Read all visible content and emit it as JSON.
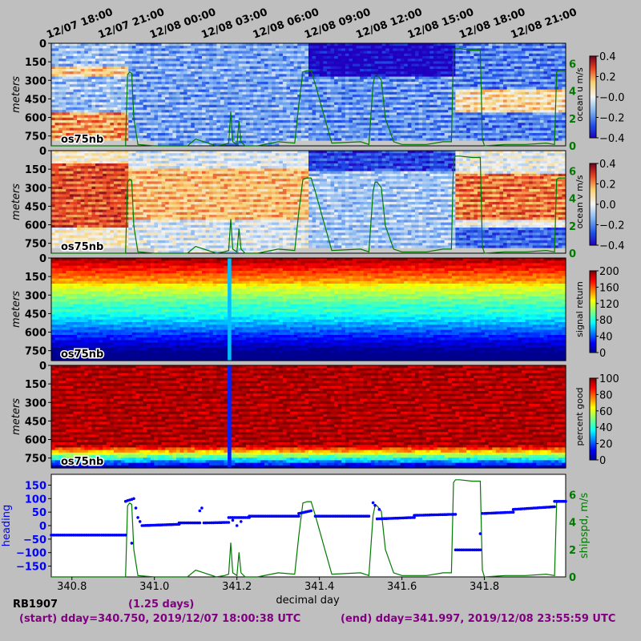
{
  "chart_data": {
    "top_axis_labels": [
      "12/07 18:00",
      "12/07 21:00",
      "12/08 00:00",
      "12/08 03:00",
      "12/08 06:00",
      "12/08 09:00",
      "12/08 12:00",
      "12/08 15:00",
      "12/08 18:00",
      "12/08 21:00"
    ],
    "top_axis_decimal_day": [
      340.75,
      340.875,
      341.0,
      341.125,
      341.25,
      341.375,
      341.5,
      341.625,
      341.75,
      341.875
    ],
    "xlim": [
      340.75,
      341.997
    ],
    "x_ticks": [
      340.8,
      341.0,
      341.2,
      341.4,
      341.6,
      341.8
    ],
    "x_tick_labels": [
      "340.8",
      "341.0",
      "341.2",
      "341.4",
      "341.6",
      "341.8"
    ],
    "xlabel": "decimal day",
    "depth_ticks": [
      0,
      150,
      300,
      450,
      600,
      750
    ],
    "depth_tick_labels": [
      "0",
      "150",
      "300",
      "450",
      "600",
      "750"
    ],
    "depth_max": 830,
    "depth_ylabel": "meters",
    "panel_tag": "os75nb",
    "shipspd_ticks": [
      0,
      2,
      4,
      6
    ],
    "shipspd_tick_labels": [
      "0",
      "2",
      "4",
      "6"
    ],
    "shipspd_max": 7.5,
    "shipspd": {
      "x": [
        340.75,
        340.93,
        340.935,
        340.94,
        340.945,
        340.95,
        340.96,
        341.0,
        341.08,
        341.1,
        341.15,
        341.17,
        341.18,
        341.185,
        341.19,
        341.2,
        341.205,
        341.21,
        341.22,
        341.25,
        341.3,
        341.34,
        341.35,
        341.36,
        341.37,
        341.38,
        341.39,
        341.43,
        341.5,
        341.52,
        341.53,
        341.535,
        341.54,
        341.55,
        341.56,
        341.58,
        341.6,
        341.66,
        341.7,
        341.72,
        341.725,
        341.73,
        341.74,
        341.77,
        341.79,
        341.795,
        341.8,
        341.85,
        341.9,
        341.95,
        341.97,
        341.975,
        341.98,
        341.997
      ],
      "y": [
        0,
        0,
        5.2,
        5.4,
        5.3,
        2,
        0.1,
        0,
        0,
        0.5,
        0,
        0.1,
        0.2,
        2.5,
        0.3,
        0.1,
        1.8,
        0.3,
        0,
        0,
        0.3,
        0.2,
        3,
        5.4,
        5.5,
        5.5,
        4.5,
        0.2,
        0.3,
        0.1,
        4.5,
        5.2,
        5.2,
        4.8,
        2,
        0.3,
        0.1,
        0.1,
        0.3,
        0.3,
        6.9,
        7.1,
        7.1,
        7.0,
        7.0,
        0.5,
        0,
        0.1,
        0.1,
        0.2,
        0.1,
        5.4,
        5.5,
        5.5
      ]
    },
    "heading_ticks": [
      -150,
      -100,
      -50,
      0,
      50,
      100,
      150
    ],
    "heading_tick_labels": [
      "−150",
      "−100",
      "−50",
      "0",
      "50",
      "100",
      "150"
    ],
    "heading_ylim": [
      -190,
      190
    ],
    "heading_ylabel": "heading",
    "shipspd_ylabel": "shipspd, m/s",
    "heading_segments": [
      {
        "x0": 340.75,
        "x1": 340.93,
        "y0": -35,
        "y1": -35
      },
      {
        "x0": 340.93,
        "x1": 340.95,
        "y0": 90,
        "y1": 100
      },
      {
        "x0": 340.97,
        "x1": 341.06,
        "y0": 0,
        "y1": 5
      },
      {
        "x0": 341.06,
        "x1": 341.11,
        "y0": 10,
        "y1": 10
      },
      {
        "x0": 341.12,
        "x1": 341.18,
        "y0": 10,
        "y1": 12
      },
      {
        "x0": 341.18,
        "x1": 341.23,
        "y0": 30,
        "y1": 30
      },
      {
        "x0": 341.23,
        "x1": 341.35,
        "y0": 35,
        "y1": 35
      },
      {
        "x0": 341.35,
        "x1": 341.38,
        "y0": 45,
        "y1": 55
      },
      {
        "x0": 341.39,
        "x1": 341.52,
        "y0": 35,
        "y1": 35
      },
      {
        "x0": 341.54,
        "x1": 341.63,
        "y0": 25,
        "y1": 30
      },
      {
        "x0": 341.63,
        "x1": 341.73,
        "y0": 38,
        "y1": 42
      },
      {
        "x0": 341.73,
        "x1": 341.79,
        "y0": -90,
        "y1": -90
      },
      {
        "x0": 341.8,
        "x1": 341.87,
        "y0": 45,
        "y1": 50
      },
      {
        "x0": 341.87,
        "x1": 341.97,
        "y0": 60,
        "y1": 70
      },
      {
        "x0": 341.97,
        "x1": 341.997,
        "y0": 90,
        "y1": 90
      }
    ],
    "heading_extra_points": [
      {
        "x": 340.945,
        "y": -65
      },
      {
        "x": 340.955,
        "y": 65
      },
      {
        "x": 340.96,
        "y": 30
      },
      {
        "x": 340.965,
        "y": 15
      },
      {
        "x": 341.11,
        "y": 55
      },
      {
        "x": 341.115,
        "y": 65
      },
      {
        "x": 341.19,
        "y": 20
      },
      {
        "x": 341.2,
        "y": 0
      },
      {
        "x": 341.21,
        "y": 15
      },
      {
        "x": 341.53,
        "y": 85
      },
      {
        "x": 341.535,
        "y": 75
      },
      {
        "x": 341.545,
        "y": 60
      },
      {
        "x": 341.79,
        "y": -30
      },
      {
        "x": 341.795,
        "y": 45
      }
    ],
    "panels": [
      {
        "label": "ocean u m/s",
        "colormap": "diverging",
        "cbar_ticks": [
          0.4,
          0.2,
          0.0,
          -0.2,
          -0.4
        ],
        "cbar_tick_labels": [
          "0.4",
          "0.2",
          "−0.0",
          "−0.2",
          "−0.4"
        ],
        "has_shipspd": true
      },
      {
        "label": "ocean v m/s",
        "colormap": "diverging",
        "cbar_ticks": [
          0.4,
          0.2,
          0.0,
          -0.2,
          -0.4
        ],
        "cbar_tick_labels": [
          "0.4",
          "0.2",
          "0.0",
          "−0.2",
          "−0.4"
        ],
        "has_shipspd": true
      },
      {
        "label": "signal return",
        "colormap": "jet",
        "cbar_ticks": [
          200,
          160,
          120,
          80,
          40,
          0
        ],
        "cbar_tick_labels": [
          "200",
          "160",
          "120",
          "80",
          "40",
          "0"
        ],
        "has_shipspd": false
      },
      {
        "label": "percent good",
        "colormap": "jet",
        "cbar_ticks": [
          100,
          80,
          60,
          40,
          20,
          0
        ],
        "cbar_tick_labels": [
          "100",
          "80",
          "60",
          "40",
          "20",
          "0"
        ],
        "has_shipspd": false
      }
    ]
  },
  "footer": {
    "cruise": "RB1907",
    "duration": "(1.25 days)",
    "start": "(start) dday=340.750,  2019/12/07 18:00:38 UTC",
    "end": "(end) dday=341.997,  2019/12/08 23:55:59 UTC"
  },
  "colors": {
    "shipspd_line": "#007a00",
    "heading_dots": "#0000ff",
    "footer_text": "#800080",
    "cruise_text": "#000000"
  }
}
